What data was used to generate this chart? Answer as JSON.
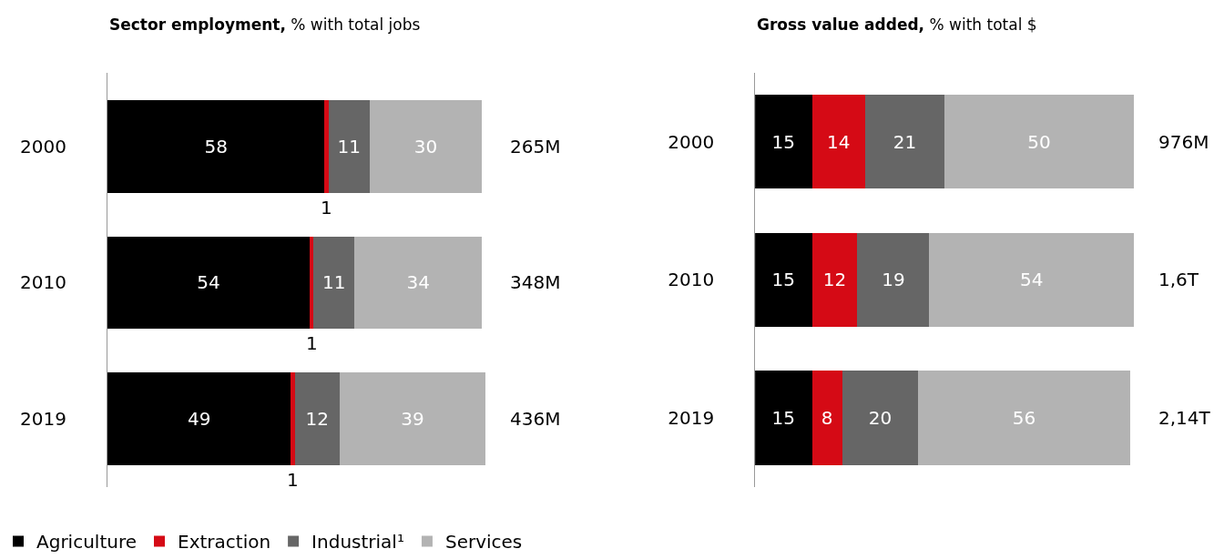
{
  "chart_data": [
    {
      "type": "bar",
      "orientation": "horizontal",
      "stacked": true,
      "title": "Sector employment,",
      "subtitle": "% with total jobs",
      "categories": [
        "2000",
        "2010",
        "2019"
      ],
      "series": [
        {
          "name": "Agriculture",
          "color": "#000000",
          "values": [
            58,
            54,
            49
          ]
        },
        {
          "name": "Extraction",
          "color": "#d50a15",
          "values": [
            1,
            1,
            1
          ]
        },
        {
          "name": "Industrial¹",
          "color": "#666666",
          "values": [
            11,
            11,
            12
          ]
        },
        {
          "name": "Services",
          "color": "#b3b3b3",
          "values": [
            30,
            34,
            39
          ]
        }
      ],
      "data_labels": true,
      "annotations": [
        "265M",
        "348M",
        "436M"
      ],
      "legend": "bottom"
    },
    {
      "type": "bar",
      "orientation": "horizontal",
      "stacked": true,
      "title": "Gross value added,",
      "subtitle": "% with total $",
      "categories": [
        "2000",
        "2010",
        "2019"
      ],
      "series": [
        {
          "color": "#000000",
          "values": [
            15,
            15,
            15
          ]
        },
        {
          "color": "#d50a15",
          "values": [
            14,
            12,
            8
          ]
        },
        {
          "color": "#666666",
          "values": [
            21,
            19,
            20
          ]
        },
        {
          "color": "#b3b3b3",
          "values": [
            50,
            54,
            56
          ]
        }
      ],
      "data_labels": true,
      "annotations": [
        "976M",
        "1,6T",
        "2,14T"
      ]
    }
  ]
}
